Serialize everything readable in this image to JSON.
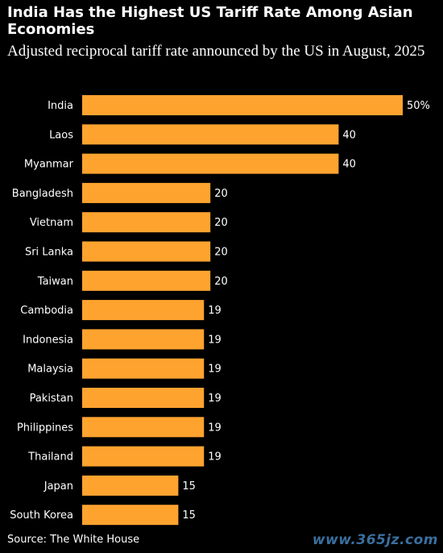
{
  "title": "India Has the Highest US Tariff Rate Among Asian Economies",
  "subtitle": "Adjusted reciprocal tariff rate announced by the US in August, 2025",
  "source": "Source: The White House",
  "watermark": "www.365jz.com",
  "colors": {
    "background": "#000000",
    "bar": "#ffa32f",
    "text": "#ffffff"
  },
  "chart_data": {
    "type": "bar",
    "orientation": "horizontal",
    "categories": [
      "India",
      "Laos",
      "Myanmar",
      "Bangladesh",
      "Vietnam",
      "Sri Lanka",
      "Taiwan",
      "Cambodia",
      "Indonesia",
      "Malaysia",
      "Pakistan",
      "Philippines",
      "Thailand",
      "Japan",
      "South Korea"
    ],
    "values": [
      50,
      40,
      40,
      20,
      20,
      20,
      20,
      19,
      19,
      19,
      19,
      19,
      19,
      15,
      15
    ],
    "value_labels": [
      "50%",
      "40",
      "40",
      "20",
      "20",
      "20",
      "20",
      "19",
      "19",
      "19",
      "19",
      "19",
      "19",
      "15",
      "15"
    ],
    "xlim": [
      0,
      50
    ],
    "grid": false,
    "legend": "none"
  }
}
